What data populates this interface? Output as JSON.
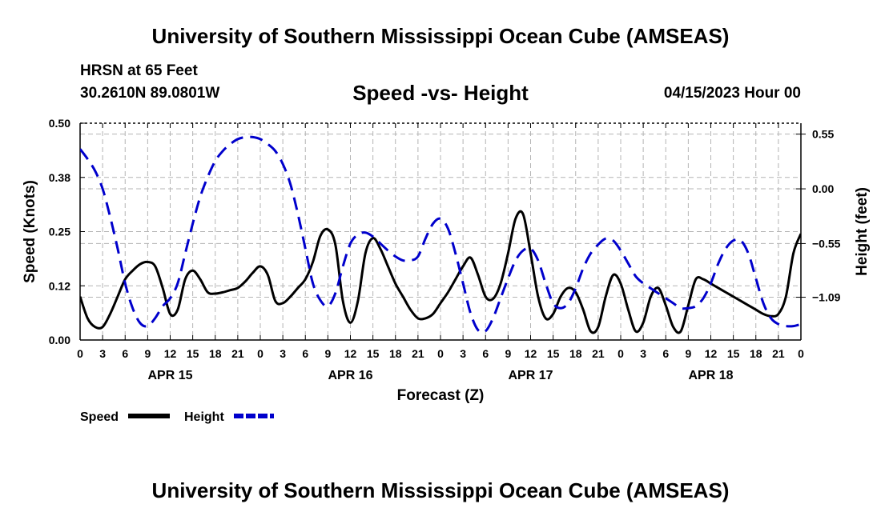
{
  "header": {
    "main_title": "University of Southern Mississippi Ocean Cube (AMSEAS)",
    "station": "HRSN at 65 Feet",
    "coords": "30.2610N  89.0801W",
    "subtitle": "Speed -vs- Height",
    "datetime": "04/15/2023 Hour 00",
    "footer_title": "University of Southern Mississippi Ocean Cube (AMSEAS)"
  },
  "colors": {
    "speed": "#000000",
    "height": "#0000cc",
    "grid": "#b4b4b4"
  },
  "chart_data": {
    "type": "line",
    "title": "Speed -vs- Height",
    "xlabel": "Forecast (Z)",
    "ylabel": "Speed (Knots)",
    "y2label": "Height (feet)",
    "ylim": [
      0,
      0.5
    ],
    "y2lim": [
      -1.52,
      0.66
    ],
    "xlim": [
      0,
      96
    ],
    "x_ticks": [
      0,
      3,
      6,
      9,
      12,
      15,
      18,
      21,
      24,
      27,
      30,
      33,
      36,
      39,
      42,
      45,
      48,
      51,
      54,
      57,
      60,
      63,
      66,
      69,
      72,
      75,
      78,
      81,
      84,
      87,
      90,
      93,
      96
    ],
    "x_tick_labels": [
      "0",
      "3",
      "6",
      "9",
      "12",
      "15",
      "18",
      "21",
      "0",
      "3",
      "6",
      "9",
      "12",
      "15",
      "18",
      "21",
      "0",
      "3",
      "6",
      "9",
      "12",
      "15",
      "18",
      "21",
      "0",
      "3",
      "6",
      "9",
      "12",
      "15",
      "18",
      "21",
      "0"
    ],
    "date_labels": [
      {
        "x": 12,
        "label": "APR 15"
      },
      {
        "x": 36,
        "label": "APR 16"
      },
      {
        "x": 60,
        "label": "APR 17"
      },
      {
        "x": 84,
        "label": "APR 18"
      }
    ],
    "y_ticks": [
      0,
      0.125,
      0.25,
      0.375,
      0.5
    ],
    "y_tick_labels": [
      "0.00",
      "0.12",
      "0.25",
      "0.38",
      "0.50"
    ],
    "y2_ticks": [
      0.55,
      0.0,
      -0.55,
      -1.09
    ],
    "y2_tick_labels": [
      "0.55",
      "0.00",
      "−0.55",
      "−1.09"
    ],
    "legend": [
      {
        "name": "Speed",
        "style": "solid"
      },
      {
        "name": "Height",
        "style": "dashed"
      }
    ],
    "series": [
      {
        "name": "Speed",
        "axis": "left",
        "x": [
          0,
          1,
          2,
          3,
          4,
          5,
          6,
          7,
          8,
          9,
          10,
          11,
          12,
          13,
          14,
          15,
          16,
          17,
          18,
          19,
          20,
          21,
          22,
          23,
          24,
          25,
          26,
          27,
          28,
          29,
          30,
          31,
          32,
          33,
          34,
          35,
          36,
          37,
          38,
          39,
          40,
          41,
          42,
          43,
          44,
          45,
          46,
          47,
          48,
          49,
          50,
          51,
          52,
          53,
          54,
          55,
          56,
          57,
          58,
          59,
          60,
          61,
          62,
          63,
          64,
          65,
          66,
          67,
          68,
          69,
          70,
          71,
          72,
          73,
          74,
          75,
          76,
          77,
          78,
          79,
          80,
          81,
          82,
          83,
          84,
          85,
          86,
          87,
          88,
          89,
          90,
          91,
          92,
          93,
          94,
          95,
          96
        ],
        "values": [
          0.1,
          0.05,
          0.03,
          0.03,
          0.06,
          0.1,
          0.14,
          0.16,
          0.175,
          0.18,
          0.17,
          0.12,
          0.06,
          0.07,
          0.14,
          0.16,
          0.14,
          0.11,
          0.107,
          0.11,
          0.115,
          0.12,
          0.135,
          0.155,
          0.17,
          0.15,
          0.09,
          0.085,
          0.1,
          0.12,
          0.14,
          0.18,
          0.24,
          0.255,
          0.22,
          0.09,
          0.04,
          0.09,
          0.2,
          0.235,
          0.21,
          0.17,
          0.13,
          0.1,
          0.07,
          0.05,
          0.05,
          0.06,
          0.085,
          0.11,
          0.14,
          0.17,
          0.19,
          0.15,
          0.1,
          0.095,
          0.13,
          0.2,
          0.28,
          0.29,
          0.2,
          0.1,
          0.05,
          0.06,
          0.1,
          0.12,
          0.11,
          0.07,
          0.02,
          0.03,
          0.1,
          0.15,
          0.13,
          0.07,
          0.02,
          0.04,
          0.1,
          0.12,
          0.08,
          0.03,
          0.02,
          0.08,
          0.14,
          0.14,
          0.13,
          0.12,
          0.11,
          0.1,
          0.09,
          0.08,
          0.07,
          0.06,
          0.055,
          0.06,
          0.1,
          0.2,
          0.245
        ]
      },
      {
        "name": "Height",
        "axis": "right",
        "x": [
          0,
          1,
          2,
          3,
          4,
          5,
          6,
          7,
          8,
          9,
          10,
          11,
          12,
          13,
          14,
          15,
          16,
          17,
          18,
          19,
          20,
          21,
          22,
          23,
          24,
          25,
          26,
          27,
          28,
          29,
          30,
          31,
          32,
          33,
          34,
          35,
          36,
          37,
          38,
          39,
          40,
          41,
          42,
          43,
          44,
          45,
          46,
          47,
          48,
          49,
          50,
          51,
          52,
          53,
          54,
          55,
          56,
          57,
          58,
          59,
          60,
          61,
          62,
          63,
          64,
          65,
          66,
          67,
          68,
          69,
          70,
          71,
          72,
          73,
          74,
          75,
          76,
          77,
          78,
          79,
          80,
          81,
          82,
          83,
          84,
          85,
          86,
          87,
          88,
          89,
          90,
          91,
          92,
          93,
          94,
          95,
          96
        ],
        "values": [
          0.4,
          0.3,
          0.18,
          0.0,
          -0.28,
          -0.6,
          -0.95,
          -1.2,
          -1.35,
          -1.38,
          -1.3,
          -1.18,
          -1.1,
          -0.95,
          -0.65,
          -0.35,
          -0.08,
          0.12,
          0.28,
          0.38,
          0.45,
          0.5,
          0.52,
          0.52,
          0.5,
          0.45,
          0.38,
          0.25,
          0.05,
          -0.25,
          -0.6,
          -0.95,
          -1.12,
          -1.18,
          -1.05,
          -0.78,
          -0.55,
          -0.46,
          -0.44,
          -0.48,
          -0.55,
          -0.62,
          -0.68,
          -0.72,
          -0.72,
          -0.68,
          -0.5,
          -0.35,
          -0.3,
          -0.4,
          -0.65,
          -0.95,
          -1.25,
          -1.42,
          -1.43,
          -1.3,
          -1.1,
          -0.9,
          -0.72,
          -0.62,
          -0.6,
          -0.72,
          -0.95,
          -1.15,
          -1.2,
          -1.15,
          -1.0,
          -0.8,
          -0.65,
          -0.56,
          -0.5,
          -0.52,
          -0.62,
          -0.75,
          -0.88,
          -0.95,
          -1.0,
          -1.05,
          -1.1,
          -1.15,
          -1.2,
          -1.2,
          -1.18,
          -1.1,
          -0.95,
          -0.75,
          -0.6,
          -0.52,
          -0.52,
          -0.65,
          -0.9,
          -1.15,
          -1.3,
          -1.36,
          -1.38,
          -1.38,
          -1.36
        ]
      }
    ]
  }
}
